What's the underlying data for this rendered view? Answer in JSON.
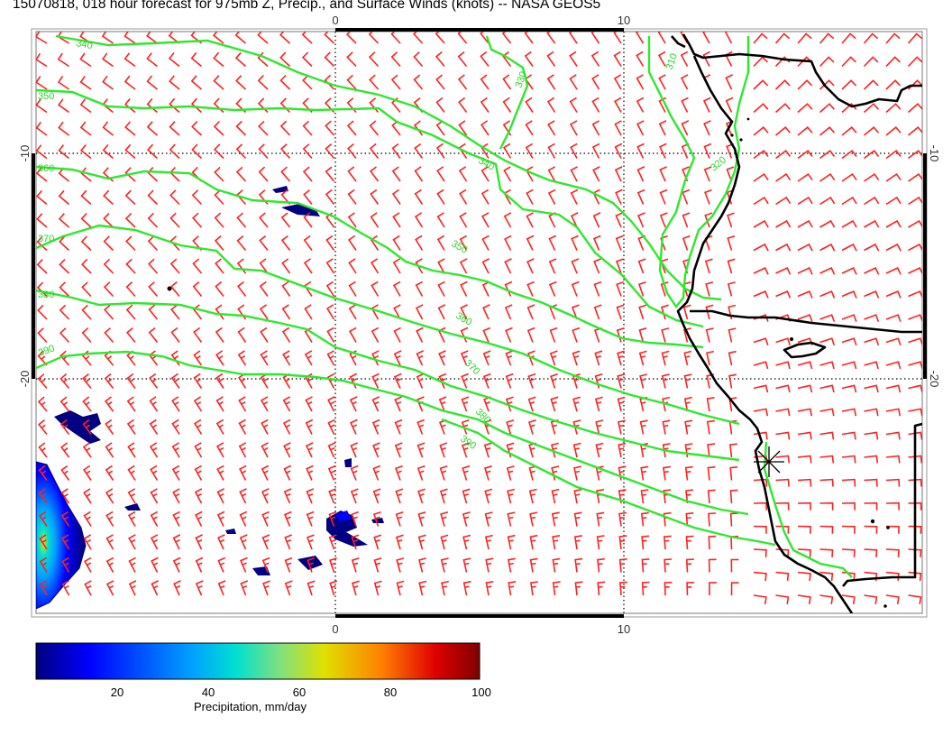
{
  "title": "15070818, 018 hour forecast for 975mb Z, Precip., and Surface Winds (knots) -- NASA GEOS5",
  "axes": {
    "top_labels": [
      "0",
      "10"
    ],
    "bottom_labels": [
      "0",
      "10"
    ],
    "left_labels": [
      "-10",
      "-20"
    ],
    "right_labels": [
      "-10",
      "-20"
    ]
  },
  "contour_labels": [
    "340",
    "350",
    "360",
    "370",
    "380",
    "390",
    "340",
    "350",
    "360",
    "370",
    "380",
    "390",
    "330",
    "310",
    "320"
  ],
  "colorbar": {
    "title": "Precipitation, mm/day",
    "ticks": [
      "20",
      "40",
      "60",
      "80",
      "100"
    ],
    "colors": [
      "#00007f",
      "#0000ff",
      "#00a0ff",
      "#00e0d0",
      "#80e080",
      "#e0e000",
      "#ff8000",
      "#e00000",
      "#7f0000"
    ]
  },
  "colors": {
    "contour": "#2ee82e",
    "barb": "#ff2020",
    "coast": "#000000",
    "precip_low": "#000080"
  }
}
